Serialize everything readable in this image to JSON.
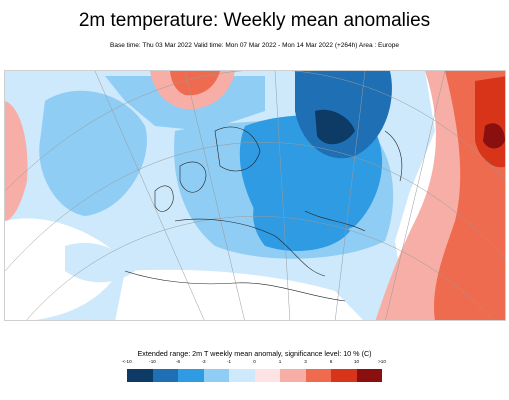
{
  "title": "2m temperature: Weekly mean anomalies",
  "subtitle": "Base time: Thu 03 Mar 2022 Valid time: Mon 07 Mar 2022 - Mon 14 Mar 2022 (+264h) Area : Europe",
  "legend": {
    "caption": "Extended range: 2m T weekly mean anomaly, significance level: 10 % (C)",
    "ticks": [
      "<-10",
      "-10",
      "-6",
      "-3",
      "-1",
      "0",
      "1",
      "3",
      "6",
      "10",
      ">10"
    ],
    "colors": [
      "#0d3b66",
      "#1f6fb5",
      "#2f9be3",
      "#8fcdf5",
      "#cde9fb",
      "#fde3e3",
      "#f7aea7",
      "#ef6b4f",
      "#d7341a",
      "#8a0f0f"
    ]
  }
}
